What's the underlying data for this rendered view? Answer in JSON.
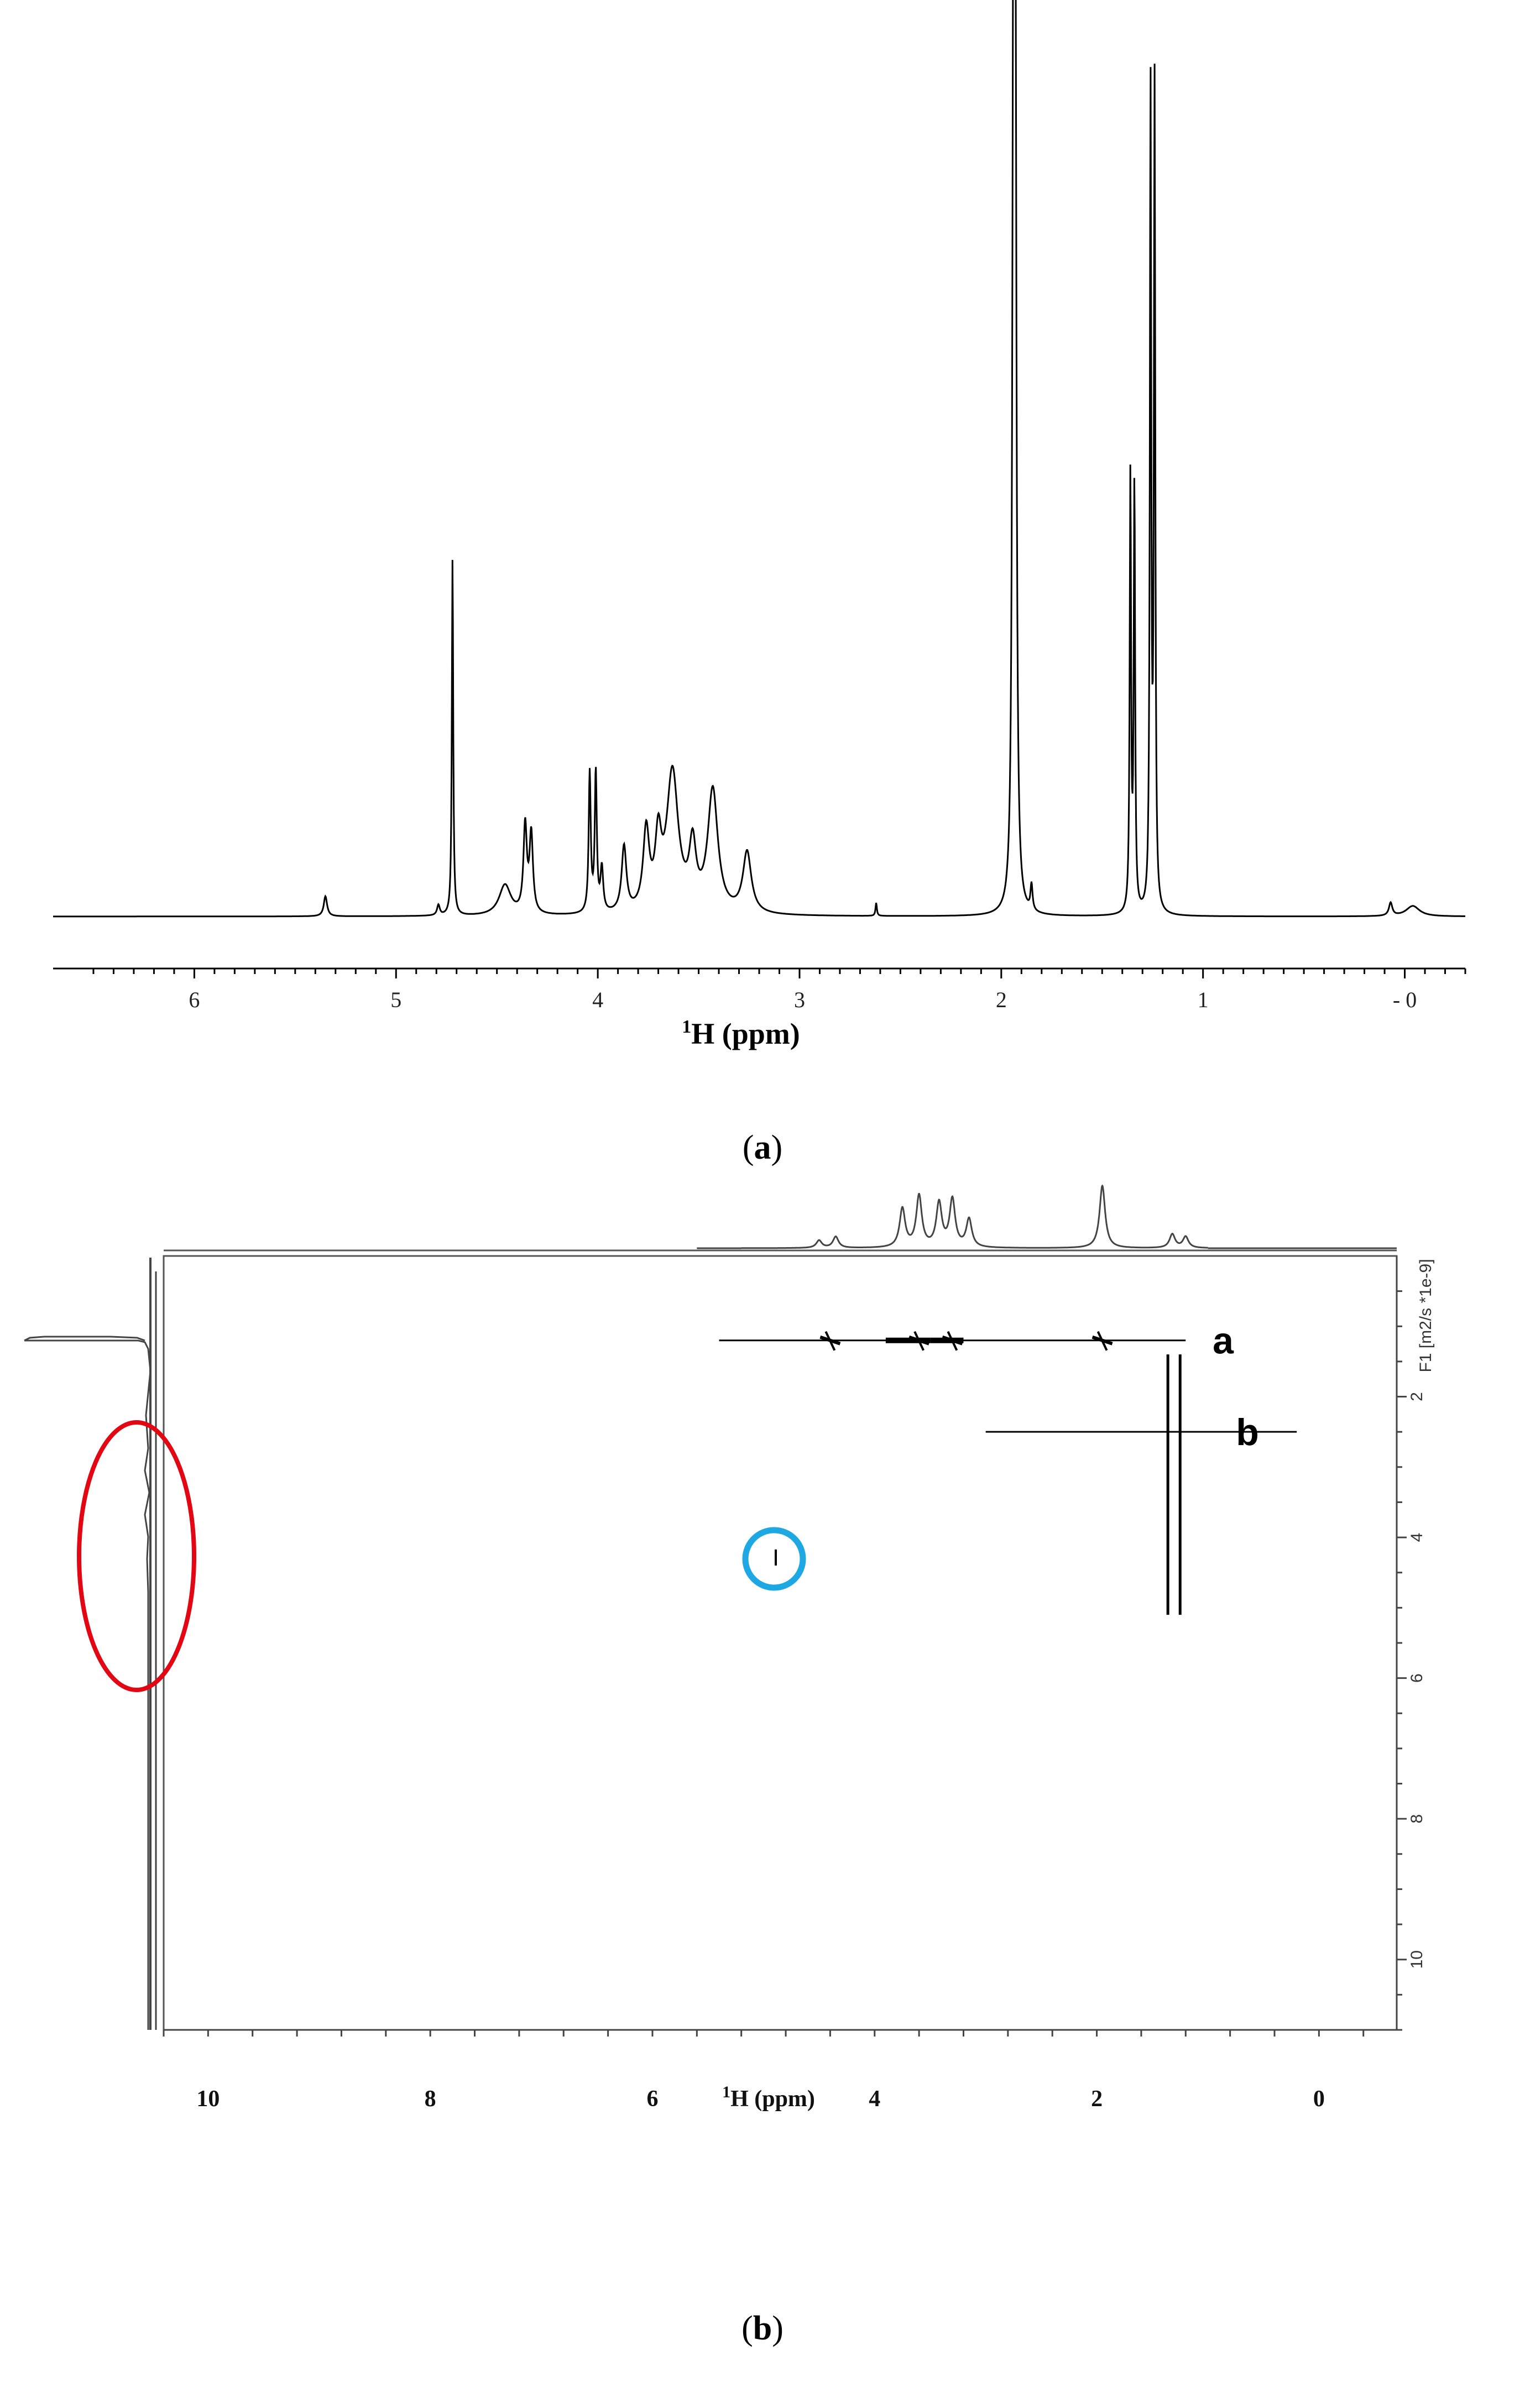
{
  "chart_data": [
    {
      "panel": "a",
      "type": "line",
      "spectrum": "1H NMR",
      "xlabel_sup": "1",
      "xlabel_main": "H (ppm)",
      "xlim": [
        6.7,
        -0.3
      ],
      "x_ticks": [
        6,
        5,
        4,
        3,
        2,
        1,
        0
      ],
      "x_tick_labels": [
        "6",
        "5",
        "4",
        "3",
        "2",
        "1",
        "- 0"
      ],
      "ylim": [
        0,
        1.0
      ],
      "baseline": 0,
      "peaks": [
        {
          "ppm": 5.35,
          "height": 0.023,
          "width": 0.01
        },
        {
          "ppm": 4.79,
          "height": 0.012,
          "width": 0.008
        },
        {
          "ppm": 4.72,
          "height": 0.41,
          "width": 0.004
        },
        {
          "ppm": 4.46,
          "height": 0.035,
          "width": 0.035
        },
        {
          "ppm": 4.36,
          "height": 0.1,
          "width": 0.01
        },
        {
          "ppm": 4.33,
          "height": 0.09,
          "width": 0.01
        },
        {
          "ppm": 4.04,
          "height": 0.16,
          "width": 0.006
        },
        {
          "ppm": 4.01,
          "height": 0.16,
          "width": 0.006
        },
        {
          "ppm": 3.98,
          "height": 0.05,
          "width": 0.008
        },
        {
          "ppm": 3.87,
          "height": 0.075,
          "width": 0.014
        },
        {
          "ppm": 3.76,
          "height": 0.09,
          "width": 0.018
        },
        {
          "ppm": 3.7,
          "height": 0.075,
          "width": 0.018
        },
        {
          "ppm": 3.63,
          "height": 0.16,
          "width": 0.035
        },
        {
          "ppm": 3.53,
          "height": 0.07,
          "width": 0.02
        },
        {
          "ppm": 3.43,
          "height": 0.14,
          "width": 0.03
        },
        {
          "ppm": 3.26,
          "height": 0.07,
          "width": 0.025
        },
        {
          "ppm": 2.62,
          "height": 0.015,
          "width": 0.004
        },
        {
          "ppm": 1.94,
          "height": 0.99,
          "width": 0.006
        },
        {
          "ppm": 1.93,
          "height": 0.96,
          "width": 0.006
        },
        {
          "ppm": 1.85,
          "height": 0.03,
          "width": 0.006
        },
        {
          "ppm": 1.36,
          "height": 0.5,
          "width": 0.004
        },
        {
          "ppm": 1.34,
          "height": 0.49,
          "width": 0.004
        },
        {
          "ppm": 1.26,
          "height": 0.94,
          "width": 0.004
        },
        {
          "ppm": 1.24,
          "height": 0.94,
          "width": 0.004
        },
        {
          "ppm": 0.07,
          "height": 0.015,
          "width": 0.01
        },
        {
          "ppm": -0.04,
          "height": 0.012,
          "width": 0.04
        }
      ]
    },
    {
      "panel": "b",
      "type": "scatter",
      "spectrum": "2D DOSY",
      "xlabel_sup": "1",
      "xlabel_main": "H (ppm)",
      "ylabel": "F1 [m2/s *1e-9]",
      "xlim": [
        10.4,
        -0.7
      ],
      "ylim": [
        0,
        11
      ],
      "x_tick_labels": [
        "10",
        "8",
        "6",
        "4",
        "2",
        "0"
      ],
      "x_tick_values": [
        10,
        8,
        6,
        4,
        2,
        0
      ],
      "y_ticks": [
        2,
        4,
        6,
        8,
        10
      ],
      "y_tick_labels": [
        "2",
        "4",
        "6",
        "8",
        "10"
      ],
      "series": [
        {
          "name": "a",
          "diffusion": 1.2,
          "ppm_range": [
            5.4,
            1.2
          ],
          "signals_ppm": [
            4.4,
            3.6,
            3.3,
            1.95
          ]
        },
        {
          "name": "b",
          "diffusion": 2.5,
          "ppm_range": [
            3.0,
            0.2
          ],
          "signals_ppm": [
            1.36,
            1.25
          ]
        }
      ],
      "highlights": [
        {
          "shape": "ellipse",
          "color": "#e30613",
          "marks": "diffusion projection trace, 2-6"
        },
        {
          "shape": "circle",
          "color": "#1ea8e3",
          "ppm": 4.8,
          "diffusion": 3.3
        }
      ]
    }
  ],
  "captions": {
    "a": "a",
    "b": "b"
  }
}
